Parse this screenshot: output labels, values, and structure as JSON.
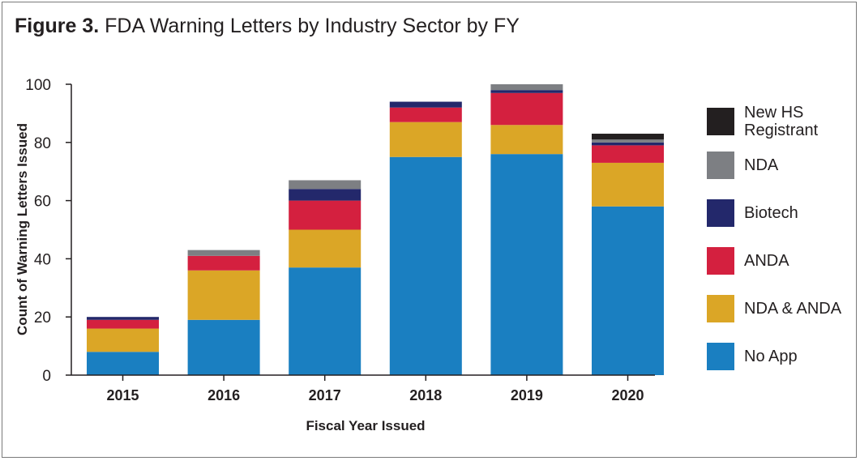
{
  "title": {
    "prefix": "Figure 3.",
    "text": "FDA Warning Letters by Industry Sector by FY"
  },
  "chart_data": {
    "type": "bar",
    "stacked": true,
    "categories": [
      "2015",
      "2016",
      "2017",
      "2018",
      "2019",
      "2020"
    ],
    "series": [
      {
        "name": "No App",
        "color": "#1a7fc1",
        "values": [
          8,
          19,
          37,
          75,
          76,
          58
        ]
      },
      {
        "name": "NDA & ANDA",
        "color": "#dba626",
        "values": [
          8,
          17,
          13,
          12,
          10,
          15
        ]
      },
      {
        "name": "ANDA",
        "color": "#d4203f",
        "values": [
          3,
          5,
          10,
          5,
          11,
          6
        ]
      },
      {
        "name": "Biotech",
        "color": "#23286b",
        "values": [
          1,
          0,
          4,
          2,
          1,
          1
        ]
      },
      {
        "name": "NDA",
        "color": "#7d7f83",
        "values": [
          0,
          2,
          3,
          0,
          2,
          1
        ]
      },
      {
        "name": "New HS Registrant",
        "color": "#231f20",
        "values": [
          0,
          0,
          0,
          0,
          0,
          2
        ]
      }
    ],
    "xlabel": "Fiscal Year Issued",
    "ylabel": "Count of Warning Letters Issued",
    "ylim": [
      0,
      100
    ],
    "yticks": [
      0,
      20,
      40,
      60,
      80,
      100
    ],
    "grid": false,
    "legend_position": "right"
  },
  "legend": [
    {
      "label_lines": [
        "New HS",
        "Registrant"
      ],
      "color": "#231f20"
    },
    {
      "label_lines": [
        "NDA"
      ],
      "color": "#7d7f83"
    },
    {
      "label_lines": [
        "Biotech"
      ],
      "color": "#23286b"
    },
    {
      "label_lines": [
        "ANDA"
      ],
      "color": "#d4203f"
    },
    {
      "label_lines": [
        "NDA & ANDA"
      ],
      "color": "#dba626"
    },
    {
      "label_lines": [
        "No App"
      ],
      "color": "#1a7fc1"
    }
  ]
}
